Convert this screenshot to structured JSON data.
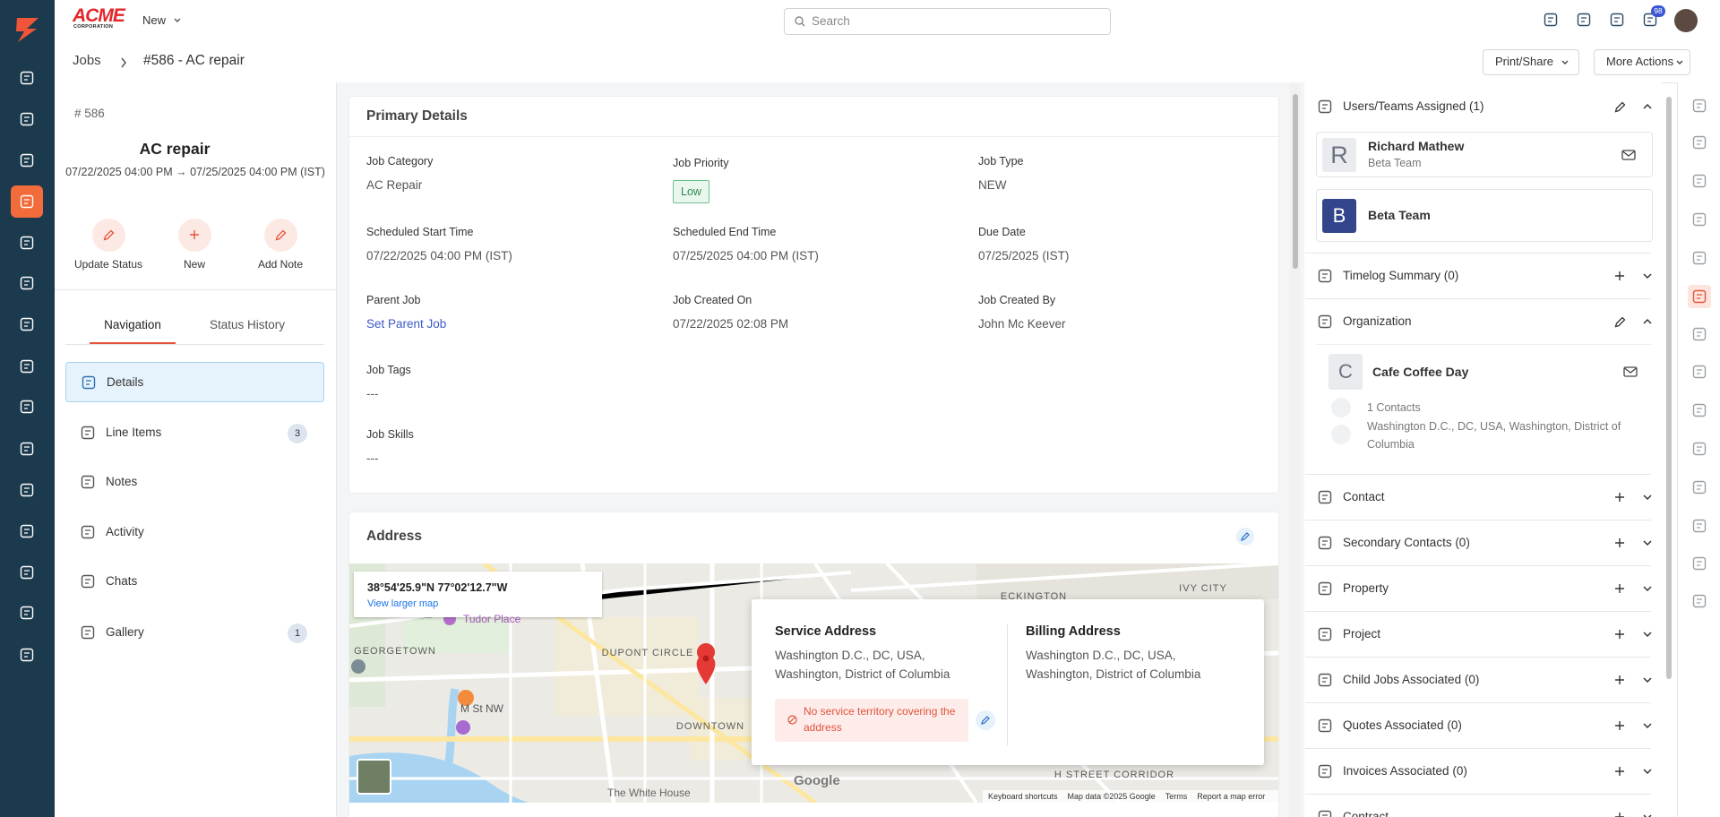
{
  "top_bar": {
    "logo": "ACME",
    "logo_tagline": "CORPORATION",
    "new_menu": "New",
    "search_placeholder": "Search",
    "notification_count": 98
  },
  "breadcrumb": {
    "parent": "Jobs",
    "current": "#586 - AC repair"
  },
  "header_buttons": [
    "Print/Share",
    "More Actions"
  ],
  "job_summary": {
    "number": "# 586",
    "title": "AC repair",
    "schedule": "07/22/2025 04:00 PM → 07/25/2025 04:00 PM (IST)",
    "actions": [
      "Update Status",
      "New",
      "Add Note"
    ]
  },
  "tabs": {
    "items": [
      "Navigation",
      "Status History"
    ],
    "active": 0
  },
  "navigation": [
    {
      "label": "Details",
      "active": true
    },
    {
      "label": "Line Items",
      "count": 3
    },
    {
      "label": "Notes"
    },
    {
      "label": "Activity"
    },
    {
      "label": "Chats"
    },
    {
      "label": "Gallery",
      "count": 1
    }
  ],
  "primary_details": {
    "title": "Primary Details",
    "rows": [
      [
        {
          "label": "Job Category",
          "value": "AC Repair"
        },
        {
          "label": "Job Priority",
          "value": "Low",
          "style": "badge"
        },
        {
          "label": "Job Type",
          "value": "NEW"
        }
      ],
      [
        {
          "label": "Scheduled Start Time",
          "value": "07/22/2025 04:00 PM (IST)"
        },
        {
          "label": "Scheduled End Time",
          "value": "07/25/2025 04:00 PM (IST)"
        },
        {
          "label": "Due Date",
          "value": "07/25/2025 (IST)"
        }
      ],
      [
        {
          "label": "Parent Job",
          "value": "Set Parent Job",
          "style": "link"
        },
        {
          "label": "Job Created On",
          "value": "07/22/2025 02:08 PM"
        },
        {
          "label": "Job Created By",
          "value": "John Mc Keever"
        }
      ],
      [
        {
          "label": "Job Tags",
          "value": "---"
        }
      ],
      [
        {
          "label": "Job Skills",
          "value": "---"
        }
      ]
    ]
  },
  "address": {
    "title": "Address",
    "map": {
      "coordinates": "38°54'25.9\"N 77°02'12.7\"W",
      "larger_map_link": "View larger map",
      "neighborhoods": [
        "GEORGETOWN",
        "DUPONT CIRCLE",
        "DOWNTOWN",
        "ECKINGTON",
        "IVY CITY",
        "H STREET CORRIDOR"
      ],
      "places": [
        "Tudor Place",
        "M St NW",
        "The White House"
      ],
      "brand": "Google",
      "attribution": [
        "Keyboard shortcuts",
        "Map data ©2025 Google",
        "Terms",
        "Report a map error"
      ]
    },
    "service_address": {
      "title": "Service Address",
      "text": "Washington D.C., DC, USA, Washington, District of Columbia",
      "warning": "No service territory covering the address"
    },
    "billing_address": {
      "title": "Billing Address",
      "text": "Washington D.C., DC, USA, Washington, District of Columbia"
    }
  },
  "side_panel": {
    "sections": [
      {
        "title": "Users/Teams Assigned (1)",
        "action": "edit",
        "expanded": true,
        "items": [
          {
            "avatar": "R",
            "name": "Richard Mathew",
            "subtitle": "Beta Team"
          },
          {
            "avatar": "B",
            "name": "Beta Team"
          }
        ]
      },
      {
        "title": "Timelog Summary (0)",
        "action": "add"
      },
      {
        "title": "Organization",
        "action": "edit",
        "expanded": true,
        "organization": {
          "avatar": "C",
          "name": "Cafe Coffee Day",
          "contacts": "1 Contacts",
          "address": "Washington D.C., DC, USA, Washington, District of Columbia"
        }
      },
      {
        "title": "Contact",
        "action": "add"
      },
      {
        "title": "Secondary Contacts (0)",
        "action": "add"
      },
      {
        "title": "Property",
        "action": "add"
      },
      {
        "title": "Project",
        "action": "add"
      },
      {
        "title": "Child Jobs Associated (0)",
        "action": "add"
      },
      {
        "title": "Quotes Associated (0)",
        "action": "add"
      },
      {
        "title": "Invoices Associated (0)",
        "action": "add"
      },
      {
        "title": "Contract",
        "action": "add"
      }
    ]
  }
}
